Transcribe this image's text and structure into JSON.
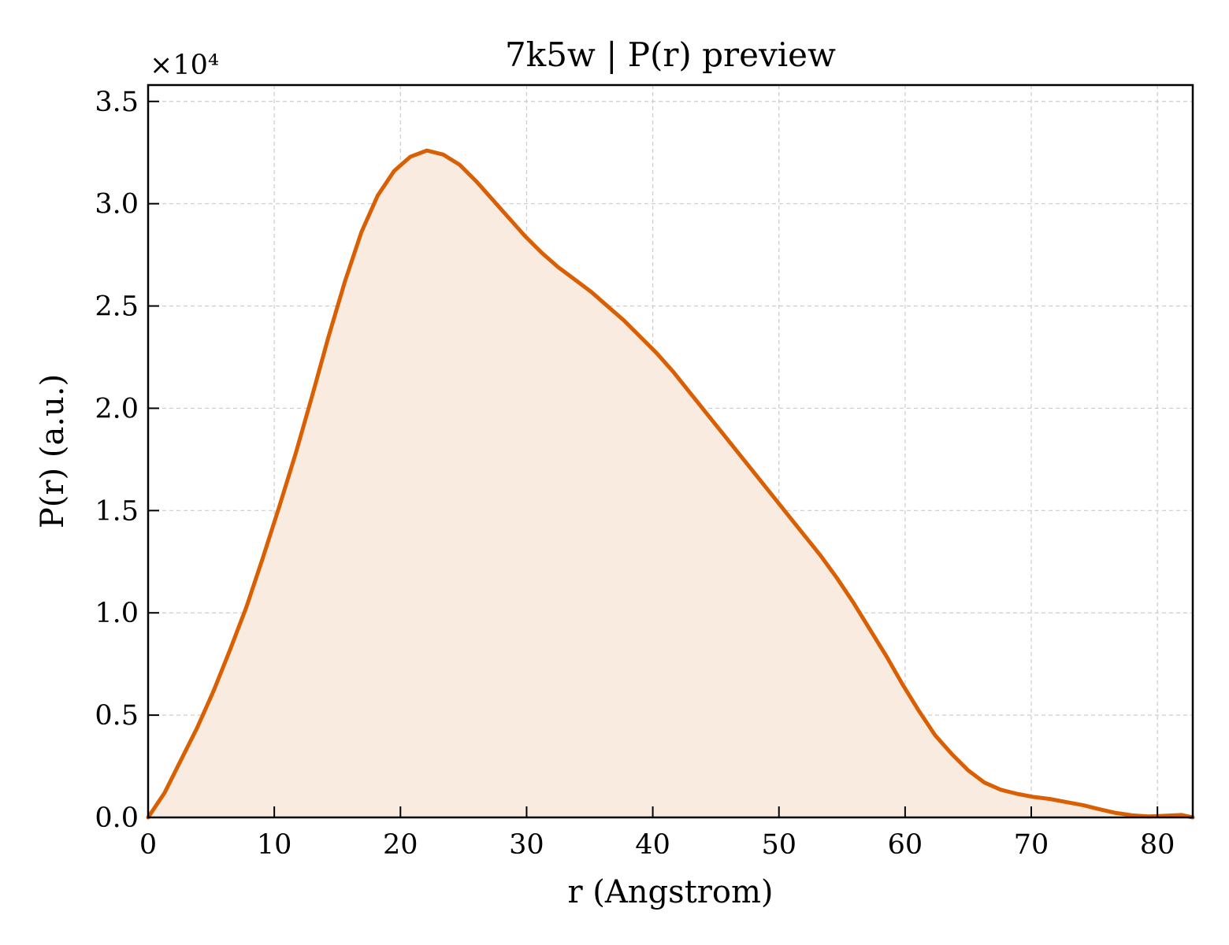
{
  "chart_data": {
    "type": "area",
    "title": "7k5w | P(r) preview",
    "xlabel": "r (Angstrom)",
    "ylabel": "P(r) (a.u.)",
    "y_offset_label": "×10⁴",
    "y_offset_multiplier": 10000,
    "xlim": [
      0,
      82.8
    ],
    "ylim": [
      0,
      3.58
    ],
    "x_ticks": [
      0,
      10,
      20,
      30,
      40,
      50,
      60,
      70,
      80
    ],
    "x_tick_labels": [
      "0",
      "10",
      "20",
      "30",
      "40",
      "50",
      "60",
      "70",
      "80"
    ],
    "y_ticks": [
      0,
      0.5,
      1.0,
      1.5,
      2.0,
      2.5,
      3.0,
      3.5
    ],
    "y_tick_labels": [
      "0.0",
      "0.5",
      "1.0",
      "1.5",
      "2.0",
      "2.5",
      "3.0",
      "3.5"
    ],
    "grid": true,
    "series": [
      {
        "color": "#d95f02",
        "fill_color": "#f9ebe0",
        "x": [
          0,
          1.3,
          2.6,
          3.9,
          5.2,
          6.5,
          7.8,
          9.1,
          10.4,
          11.7,
          13.0,
          14.3,
          15.6,
          16.9,
          18.2,
          19.5,
          20.8,
          22.1,
          23.4,
          24.7,
          26.0,
          27.3,
          28.6,
          29.9,
          31.2,
          32.5,
          33.8,
          35.1,
          36.4,
          37.7,
          39.0,
          40.3,
          41.6,
          42.9,
          44.2,
          45.5,
          46.8,
          48.1,
          49.4,
          50.7,
          52.0,
          53.3,
          54.6,
          55.9,
          57.2,
          58.5,
          59.8,
          61.1,
          62.4,
          63.7,
          65.0,
          66.3,
          67.6,
          68.9,
          70.2,
          71.5,
          72.8,
          74.1,
          75.4,
          76.7,
          78.0,
          79.3,
          80.6,
          81.9,
          82.8
        ],
        "y": [
          0,
          0.12,
          0.28,
          0.44,
          0.62,
          0.82,
          1.03,
          1.27,
          1.52,
          1.78,
          2.06,
          2.35,
          2.62,
          2.86,
          3.04,
          3.16,
          3.23,
          3.26,
          3.24,
          3.19,
          3.11,
          3.02,
          2.93,
          2.84,
          2.76,
          2.69,
          2.63,
          2.57,
          2.5,
          2.43,
          2.35,
          2.27,
          2.18,
          2.08,
          1.98,
          1.88,
          1.78,
          1.68,
          1.58,
          1.48,
          1.38,
          1.28,
          1.17,
          1.05,
          0.92,
          0.79,
          0.65,
          0.52,
          0.4,
          0.31,
          0.23,
          0.17,
          0.135,
          0.115,
          0.1,
          0.09,
          0.075,
          0.06,
          0.04,
          0.022,
          0.01,
          0.005,
          0.008,
          0.012,
          0.0
        ]
      }
    ]
  }
}
